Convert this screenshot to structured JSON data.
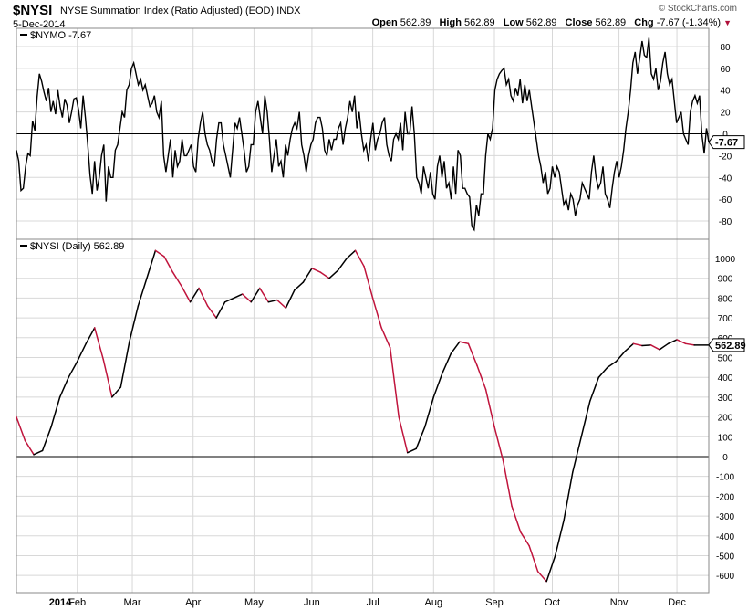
{
  "header": {
    "ticker": "$NYSI",
    "description": "NYSE Summation Index (Ratio Adjusted) (EOD)",
    "exchange": "INDX",
    "date": "5-Dec-2014",
    "brand": "© StockCharts.com",
    "open_label": "Open",
    "open": "562.89",
    "high_label": "High",
    "high": "562.89",
    "low_label": "Low",
    "low": "562.89",
    "close_label": "Close",
    "close": "562.89",
    "chg_label": "Chg",
    "chg": "-7.67 (-1.34%)"
  },
  "colors": {
    "up": "#000000",
    "down": "#c0143c",
    "grid": "#d8d8d8",
    "frame": "#888888"
  },
  "chart_data": [
    {
      "type": "line",
      "legend": "$NYMO -7.67",
      "last_value_label": "-7.67",
      "ylim": [
        -90,
        90
      ],
      "yticks": [
        -80,
        -60,
        -40,
        -20,
        0,
        20,
        40,
        60,
        80
      ],
      "xlim": [
        0,
        239
      ],
      "x_month_labels": [
        {
          "label": "2014",
          "x": 0
        },
        {
          "label": "Feb",
          "x": 21
        },
        {
          "label": "Mar",
          "x": 40
        },
        {
          "label": "Apr",
          "x": 61
        },
        {
          "label": "May",
          "x": 82
        },
        {
          "label": "Jun",
          "x": 102
        },
        {
          "label": "Jul",
          "x": 123
        },
        {
          "label": "Aug",
          "x": 144
        },
        {
          "label": "Sep",
          "x": 165
        },
        {
          "label": "Oct",
          "x": 185
        },
        {
          "label": "Nov",
          "x": 208
        },
        {
          "label": "Dec",
          "x": 228
        }
      ],
      "points": [
        [
          -15,
          -25,
          -52,
          -50,
          -30,
          -18,
          -20,
          12,
          3,
          34,
          55,
          48,
          38,
          30,
          42,
          20,
          30,
          18,
          40,
          25,
          15,
          32,
          26,
          10,
          20,
          32,
          33,
          22,
          5,
          35,
          15,
          -10,
          -38,
          -55,
          -25,
          -52,
          -40,
          -20,
          -10,
          -62,
          -30,
          -40,
          -40,
          -15,
          -10,
          5,
          20,
          15,
          40,
          45,
          60,
          65,
          55,
          45,
          50,
          40,
          45,
          35,
          25,
          28,
          35,
          20,
          15,
          30,
          -20,
          -35,
          -20,
          -5,
          -40,
          -15,
          -30,
          -25,
          -5,
          -20,
          -20,
          -15,
          -10,
          -30,
          -35,
          -5,
          10,
          20,
          0,
          -10,
          -15,
          -25,
          -30,
          -5,
          10,
          10,
          -10,
          -20,
          -30,
          -40,
          -15,
          10,
          5,
          15,
          0,
          -15,
          -35,
          -30,
          -10,
          -10,
          20,
          30,
          15,
          0,
          35,
          20,
          -5,
          -35,
          -20,
          -5,
          -30,
          -25,
          -40,
          -10,
          -20,
          -5,
          5,
          10,
          5,
          20,
          -10,
          -20,
          -35,
          -20,
          -10,
          -5,
          10,
          15,
          15,
          5,
          -15,
          -20,
          -5,
          -15,
          -5,
          -5,
          5,
          10,
          -10,
          5,
          15,
          30,
          20,
          35,
          5,
          20,
          0,
          -15,
          -10,
          -25,
          -5,
          10,
          -15,
          -5,
          0,
          10,
          15,
          -10,
          -20,
          -25,
          -5,
          0,
          -5,
          10,
          -15,
          20,
          0,
          0,
          25,
          0,
          -40,
          -45,
          -55,
          -30,
          -40,
          -50,
          -35,
          -55,
          -60,
          -30,
          -20,
          -40,
          -25,
          -50,
          -45,
          -60,
          -30,
          -55,
          -15,
          -20,
          -50,
          -50,
          -55,
          -58,
          -85,
          -88,
          -65,
          -75,
          -55,
          -55,
          -20,
          0,
          -5,
          5,
          40,
          50,
          55,
          58,
          60,
          45,
          50,
          35,
          30,
          42,
          35,
          50,
          28,
          45,
          30,
          40,
          25,
          10,
          -5,
          -20,
          -30,
          -45,
          -35,
          -55,
          -50,
          -30,
          -40,
          -30,
          -35,
          -50,
          -65,
          -60,
          -70,
          -55,
          -60,
          -75,
          -65,
          -60,
          -45,
          -50,
          -55,
          -60,
          -35,
          -20,
          -40,
          -50,
          -45,
          -30,
          -55,
          -60,
          -68,
          -50,
          -35,
          -25,
          -40,
          -30,
          -15,
          5,
          20,
          40,
          65,
          75,
          55,
          70,
          85,
          72,
          70,
          88,
          55,
          50,
          60,
          40,
          48,
          65,
          75,
          55,
          45,
          50,
          30,
          10,
          15,
          20,
          0,
          -5,
          -10,
          20,
          30,
          35,
          28,
          35,
          0,
          -18,
          5,
          -7.67
        ]
      ]
    },
    {
      "type": "line",
      "legend": "$NYSI (Daily) 562.89",
      "last_value_label": "562.89",
      "ylim": [
        -650,
        1060
      ],
      "yticks": [
        -600,
        -500,
        -400,
        -300,
        -200,
        -100,
        0,
        100,
        200,
        300,
        400,
        500,
        600,
        700,
        800,
        900,
        1000
      ],
      "xlim": [
        0,
        239
      ],
      "x": [
        0,
        3,
        6,
        9,
        12,
        15,
        18,
        21,
        24,
        27,
        30,
        33,
        36,
        39,
        42,
        45,
        48,
        51,
        54,
        57,
        60,
        63,
        66,
        69,
        72,
        75,
        78,
        81,
        84,
        87,
        90,
        93,
        96,
        99,
        102,
        105,
        108,
        111,
        114,
        117,
        120,
        123,
        126,
        129,
        132,
        135,
        138,
        141,
        144,
        147,
        150,
        153,
        156,
        159,
        162,
        165,
        168,
        171,
        174,
        177,
        180,
        183,
        186,
        189,
        192,
        195,
        198,
        201,
        204,
        207,
        210,
        213,
        216,
        219,
        222,
        225,
        228,
        231,
        234,
        239
      ],
      "y": [
        200,
        80,
        10,
        30,
        150,
        300,
        400,
        480,
        570,
        650,
        490,
        300,
        350,
        580,
        760,
        900,
        1040,
        1010,
        930,
        860,
        780,
        850,
        760,
        700,
        780,
        800,
        820,
        780,
        850,
        780,
        790,
        750,
        840,
        880,
        950,
        930,
        900,
        940,
        1000,
        1040,
        960,
        800,
        650,
        550,
        200,
        20,
        40,
        150,
        300,
        420,
        520,
        580,
        570,
        460,
        340,
        150,
        -20,
        -250,
        -380,
        -450,
        -580,
        -630,
        -500,
        -320,
        -80,
        100,
        280,
        400,
        450,
        480,
        530,
        570,
        560,
        563,
        540,
        570,
        590,
        570,
        562.89,
        562.89
      ],
      "down_segments_x": [
        [
          0,
          9
        ],
        [
          27,
          36
        ],
        [
          48,
          66
        ],
        [
          78,
          90
        ],
        [
          105,
          111
        ],
        [
          120,
          144
        ],
        [
          153,
          192
        ],
        [
          210,
          216
        ],
        [
          226,
          239
        ]
      ]
    }
  ]
}
